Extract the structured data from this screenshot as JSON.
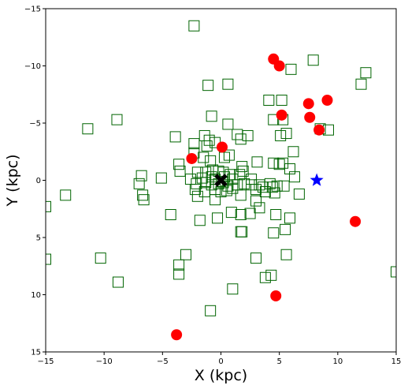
{
  "chart_data": {
    "type": "scatter",
    "xlabel": "X (kpc)",
    "ylabel": "Y (kpc)",
    "xlim": [
      -15,
      15
    ],
    "ylim": [
      15,
      -15
    ],
    "y_inverted": true,
    "grid": false,
    "xticks": [
      -15,
      -10,
      -5,
      0,
      5,
      10,
      15
    ],
    "yticks": [
      -15,
      -10,
      -5,
      0,
      5,
      10,
      15
    ],
    "xtick_labels": [
      "−15",
      "−10",
      "−5",
      "0",
      "5",
      "10",
      "15"
    ],
    "ytick_labels": [
      "−15",
      "−10",
      "−5",
      "0",
      "5",
      "10",
      "15"
    ],
    "series": [
      {
        "marker": "open-square",
        "color": "#006400",
        "points": [
          [
            -2.3,
            -13.5
          ],
          [
            7.9,
            -10.5
          ],
          [
            12.4,
            -9.4
          ],
          [
            6.0,
            -9.7
          ],
          [
            -1.1,
            -8.3
          ],
          [
            0.6,
            -8.4
          ],
          [
            12.0,
            -8.4
          ],
          [
            4.1,
            -7.0
          ],
          [
            5.2,
            -7.0
          ],
          [
            -11.4,
            -4.5
          ],
          [
            -8.9,
            -5.3
          ],
          [
            -0.8,
            -5.6
          ],
          [
            0.6,
            -4.9
          ],
          [
            4.5,
            -5.3
          ],
          [
            5.3,
            -5.3
          ],
          [
            8.5,
            -4.5
          ],
          [
            9.2,
            -4.4
          ],
          [
            5.1,
            -3.9
          ],
          [
            5.6,
            -4.1
          ],
          [
            -3.9,
            -3.8
          ],
          [
            -1.4,
            -3.9
          ],
          [
            -1.0,
            -3.5
          ],
          [
            1.4,
            -4.0
          ],
          [
            2.3,
            -3.9
          ],
          [
            1.7,
            -3.6
          ],
          [
            -2.3,
            -3.2
          ],
          [
            -1.2,
            -3.0
          ],
          [
            -0.5,
            -3.3
          ],
          [
            6.2,
            -2.5
          ],
          [
            -2.3,
            -2.4
          ],
          [
            -1.5,
            -2.0
          ],
          [
            -0.9,
            -1.7
          ],
          [
            0.3,
            -2.0
          ],
          [
            0.7,
            -2.2
          ],
          [
            3.1,
            -1.6
          ],
          [
            4.5,
            -1.5
          ],
          [
            5.0,
            -1.4
          ],
          [
            5.3,
            -1.5
          ],
          [
            5.9,
            -1.0
          ],
          [
            -3.6,
            -1.4
          ],
          [
            -3.5,
            -0.8
          ],
          [
            -2.0,
            -0.7
          ],
          [
            -1.3,
            -0.7
          ],
          [
            -0.7,
            -0.9
          ],
          [
            -0.2,
            -0.8
          ],
          [
            0.2,
            -0.7
          ],
          [
            0.8,
            -0.5
          ],
          [
            1.8,
            -1.2
          ],
          [
            1.9,
            -0.8
          ],
          [
            -6.8,
            -0.4
          ],
          [
            -5.1,
            -0.2
          ],
          [
            -2.6,
            -0.1
          ],
          [
            -1.6,
            -0.2
          ],
          [
            -0.8,
            -0.3
          ],
          [
            -0.5,
            -0.1
          ],
          [
            0.3,
            -0.3
          ],
          [
            1.0,
            -0.1
          ],
          [
            1.6,
            -0.5
          ],
          [
            2.6,
            -0.1
          ],
          [
            6.3,
            -0.3
          ],
          [
            -7.0,
            0.3
          ],
          [
            -2.1,
            0.3
          ],
          [
            -1.3,
            0.2
          ],
          [
            -0.8,
            0.4
          ],
          [
            -0.2,
            0.3
          ],
          [
            0.2,
            0.2
          ],
          [
            0.6,
            0.5
          ],
          [
            1.4,
            0.4
          ],
          [
            2.0,
            0.3
          ],
          [
            2.6,
            0.4
          ],
          [
            3.3,
            0.4
          ],
          [
            3.6,
            0.6
          ],
          [
            4.2,
            0.3
          ],
          [
            4.4,
            0.6
          ],
          [
            4.8,
            0.5
          ],
          [
            5.4,
            0.5
          ],
          [
            -2.2,
            0.8
          ],
          [
            -1.4,
            1.0
          ],
          [
            -0.5,
            0.8
          ],
          [
            0.0,
            1.0
          ],
          [
            0.5,
            0.9
          ],
          [
            1.0,
            0.7
          ],
          [
            3.0,
            0.8
          ],
          [
            3.8,
            1.0
          ],
          [
            4.6,
            1.1
          ],
          [
            6.7,
            1.2
          ],
          [
            -13.3,
            1.3
          ],
          [
            -6.7,
            1.3
          ],
          [
            -2.0,
            1.4
          ],
          [
            -0.5,
            1.7
          ],
          [
            1.7,
            1.3
          ],
          [
            3.0,
            1.8
          ],
          [
            -6.6,
            1.7
          ],
          [
            -15.0,
            2.3
          ],
          [
            -4.3,
            3.0
          ],
          [
            -1.8,
            3.5
          ],
          [
            -0.3,
            3.3
          ],
          [
            0.9,
            2.8
          ],
          [
            1.7,
            3.0
          ],
          [
            2.5,
            2.9
          ],
          [
            3.3,
            2.4
          ],
          [
            4.7,
            3.0
          ],
          [
            5.9,
            3.3
          ],
          [
            1.7,
            4.5
          ],
          [
            1.8,
            4.5
          ],
          [
            4.5,
            4.6
          ],
          [
            5.5,
            4.3
          ],
          [
            -15.0,
            6.9
          ],
          [
            -10.3,
            6.8
          ],
          [
            -3.0,
            6.5
          ],
          [
            3.0,
            6.8
          ],
          [
            5.6,
            6.5
          ],
          [
            -3.6,
            7.4
          ],
          [
            -3.6,
            8.2
          ],
          [
            -8.8,
            8.9
          ],
          [
            3.8,
            8.5
          ],
          [
            4.3,
            8.3
          ],
          [
            15.0,
            8.0
          ],
          [
            1.0,
            9.5
          ],
          [
            -0.9,
            11.4
          ]
        ]
      },
      {
        "marker": "filled-circle",
        "color": "#ff0000",
        "points": [
          [
            4.5,
            -10.6
          ],
          [
            5.0,
            -10.0
          ],
          [
            9.1,
            -7.0
          ],
          [
            7.5,
            -6.7
          ],
          [
            5.2,
            -5.7
          ],
          [
            7.6,
            -5.5
          ],
          [
            8.4,
            -4.4
          ],
          [
            0.1,
            -2.9
          ],
          [
            -2.5,
            -1.9
          ],
          [
            11.5,
            3.6
          ],
          [
            4.7,
            10.1
          ],
          [
            -3.8,
            13.5
          ]
        ]
      },
      {
        "marker": "filled-star",
        "color": "#0000ff",
        "points": [
          [
            8.2,
            0.0
          ]
        ]
      },
      {
        "marker": "filled-x",
        "color": "#000000",
        "points": [
          [
            0.0,
            0.0
          ]
        ]
      }
    ]
  }
}
